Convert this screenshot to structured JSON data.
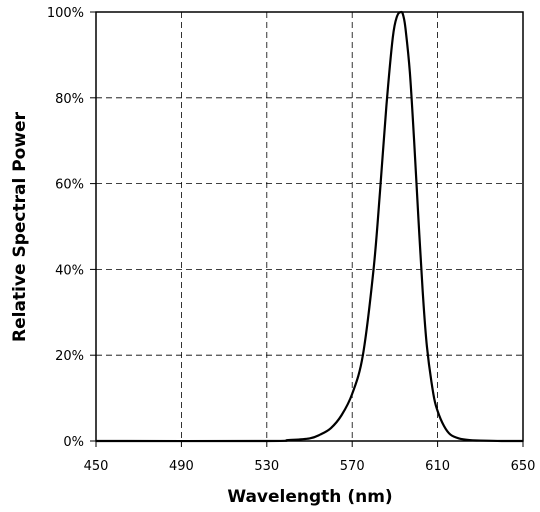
{
  "chart_data": {
    "type": "line",
    "title": "",
    "xlabel": "Wavelength (nm)",
    "ylabel": "Relative Spectral Power",
    "xlim": [
      450,
      650
    ],
    "ylim": [
      0,
      100
    ],
    "x_ticks": [
      450,
      490,
      530,
      570,
      610,
      650
    ],
    "y_ticks": [
      0,
      20,
      40,
      60,
      80,
      100
    ],
    "x_tick_labels": [
      "450",
      "490",
      "530",
      "570",
      "610",
      "650"
    ],
    "y_tick_labels": [
      "0%",
      "20%",
      "40%",
      "60%",
      "80%",
      "100%"
    ],
    "grid": true,
    "legend": "none",
    "series": [
      {
        "color": "#000000",
        "x": [
          450,
          530,
          540,
          550,
          555,
          560,
          565,
          570,
          575,
          580,
          583,
          586,
          589,
          591,
          593,
          594,
          595,
          597,
          599,
          601,
          603,
          605,
          608,
          610,
          613,
          616,
          620,
          625,
          630,
          640,
          650
        ],
        "y": [
          0,
          0,
          0.2,
          0.6,
          1.5,
          3,
          6,
          11,
          20,
          40,
          58,
          78,
          94,
          99,
          100,
          99,
          96,
          86,
          70,
          52,
          35,
          22,
          11,
          7,
          3.5,
          1.5,
          0.6,
          0.2,
          0.1,
          0,
          0
        ]
      }
    ]
  }
}
